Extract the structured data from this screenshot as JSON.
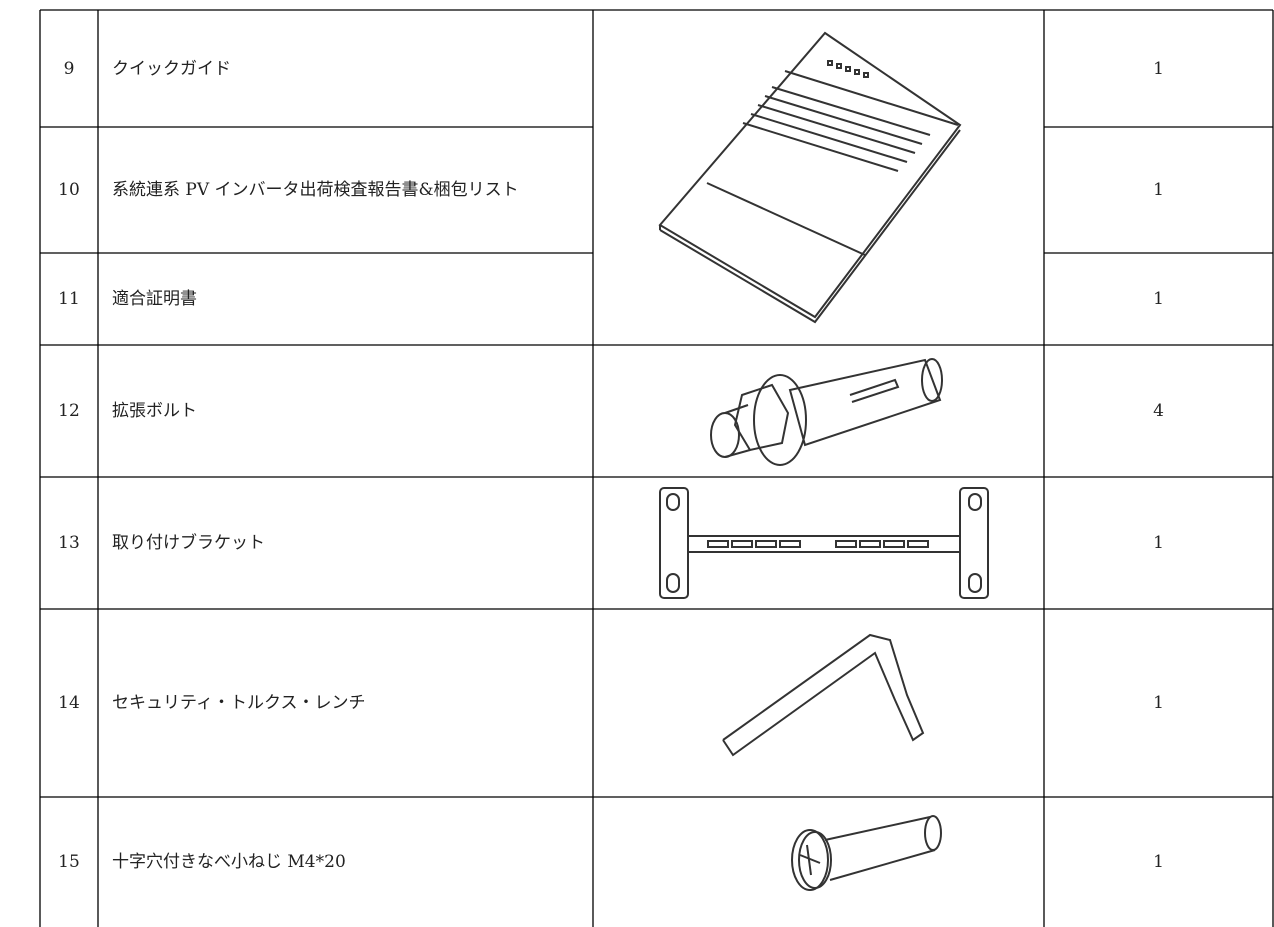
{
  "table": {
    "rows": [
      [
        "9",
        "クイックガイド",
        "1"
      ],
      [
        "10",
        "系統連系 PV インバータ出荷検査報告書&梱包リスト",
        "1"
      ],
      [
        "11",
        "適合証明書",
        "1"
      ],
      [
        "12",
        "拡張ボルト",
        "4"
      ],
      [
        "13",
        "取り付けブラケット",
        "1"
      ],
      [
        "14",
        "セキュリティ・トルクス・レンチ",
        "1"
      ],
      [
        "15",
        "十字穴付きなべ小ねじ M4*20",
        "1"
      ]
    ]
  }
}
